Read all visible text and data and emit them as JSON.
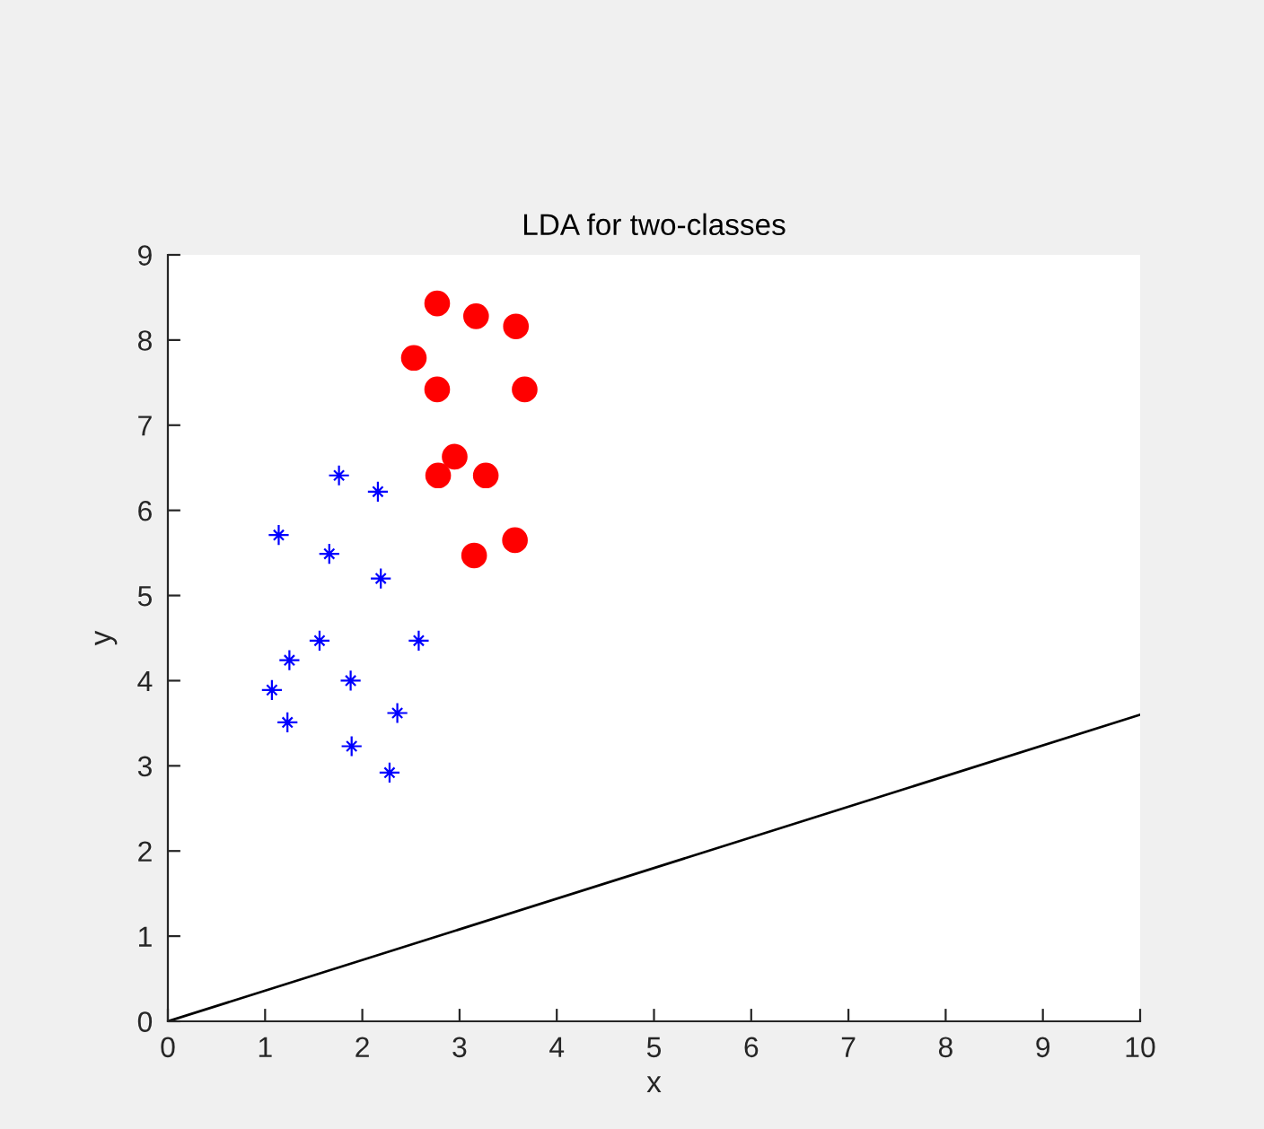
{
  "chart_data": {
    "type": "scatter",
    "title": "LDA for two-classes",
    "xlabel": "x",
    "ylabel": "y",
    "xlim": [
      0,
      10
    ],
    "ylim": [
      0,
      9
    ],
    "xticks": [
      0,
      1,
      2,
      3,
      4,
      5,
      6,
      7,
      8,
      9,
      10
    ],
    "yticks": [
      0,
      1,
      2,
      3,
      4,
      5,
      6,
      7,
      8,
      9
    ],
    "series": [
      {
        "color": "#ff0000",
        "marker": "circle",
        "x": [
          2.77,
          3.17,
          3.58,
          2.53,
          2.77,
          3.67,
          2.95,
          2.78,
          3.27,
          3.57,
          3.15
        ],
        "values": [
          8.43,
          8.28,
          8.16,
          7.79,
          7.42,
          7.42,
          6.63,
          6.41,
          6.41,
          5.65,
          5.47
        ]
      },
      {
        "color": "#0000ff",
        "marker": "cross",
        "x": [
          1.76,
          2.16,
          1.14,
          1.66,
          2.19,
          1.56,
          2.58,
          1.25,
          1.07,
          1.88,
          2.36,
          1.23,
          1.89,
          2.28
        ],
        "values": [
          6.41,
          6.22,
          5.71,
          5.49,
          5.2,
          4.47,
          4.47,
          4.24,
          3.89,
          4.0,
          3.62,
          3.51,
          3.23,
          2.92
        ]
      },
      {
        "type": "line",
        "color": "#000000",
        "marker": "none",
        "line_style": "solid",
        "x": [
          0,
          10
        ],
        "values": [
          0,
          3.6
        ]
      }
    ]
  }
}
